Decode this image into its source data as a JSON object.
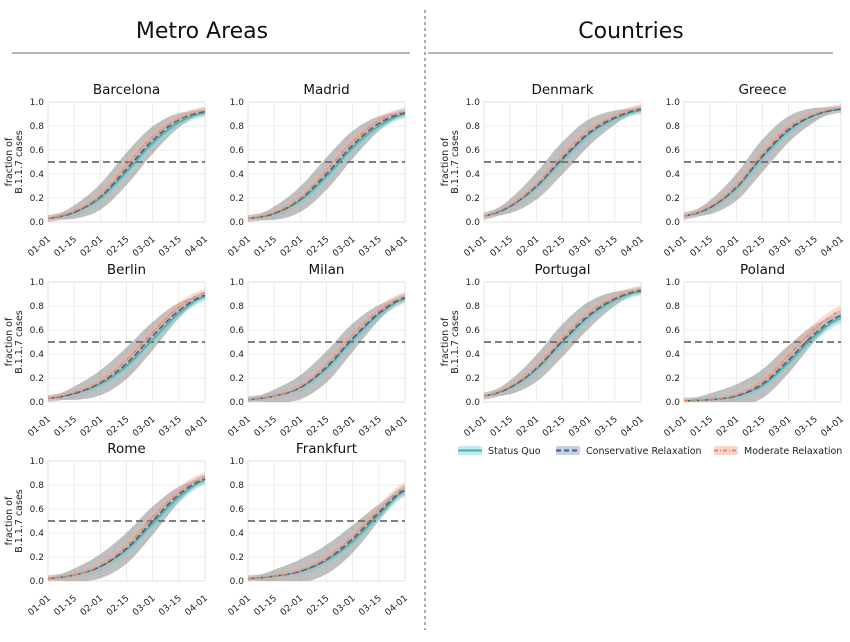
{
  "sections": {
    "left_title": "Metro Areas",
    "right_title": "Countries"
  },
  "y_axis": {
    "label_line1": "fraction of",
    "label_line2": "B.1.1.7 cases",
    "ticks": [
      "0.0",
      "0.2",
      "0.4",
      "0.6",
      "0.8",
      "1.0"
    ]
  },
  "x_axis": {
    "ticks": [
      "01-01",
      "01-15",
      "02-01",
      "02-15",
      "03-01",
      "03-15",
      "04-01"
    ]
  },
  "legend": {
    "status_quo": "Status Quo",
    "conservative": "Conservative Relaxation",
    "moderate": "Moderate Relaxation"
  },
  "colors": {
    "status_quo": "#3cb89a",
    "conservative": "#3d5d8f",
    "moderate": "#ec8a5e",
    "band_status_quo": "#8fd6e6",
    "band_conservative": "#9aaac4",
    "band_moderate": "#f2b4a0",
    "uncertainty": "#8a8a8a",
    "threshold": "#6f6f6f"
  },
  "chart_data": [
    {
      "type": "line",
      "title": "Barcelona",
      "ylim": [
        0,
        1
      ],
      "threshold": 0.5,
      "x": [
        "01-01",
        "01-15",
        "02-01",
        "02-15",
        "03-01",
        "03-15",
        "04-01"
      ],
      "series": [
        {
          "name": "Status Quo",
          "values": [
            0.03,
            0.08,
            0.2,
            0.42,
            0.66,
            0.83,
            0.91
          ]
        },
        {
          "name": "Conservative Relaxation",
          "values": [
            0.03,
            0.08,
            0.21,
            0.44,
            0.68,
            0.85,
            0.92
          ]
        },
        {
          "name": "Moderate Relaxation",
          "values": [
            0.03,
            0.09,
            0.22,
            0.47,
            0.71,
            0.86,
            0.93
          ]
        }
      ]
    },
    {
      "type": "line",
      "title": "Madrid",
      "ylim": [
        0,
        1
      ],
      "threshold": 0.5,
      "x": [
        "01-01",
        "01-15",
        "02-01",
        "02-15",
        "03-01",
        "03-15",
        "04-01"
      ],
      "series": [
        {
          "name": "Status Quo",
          "values": [
            0.03,
            0.07,
            0.18,
            0.38,
            0.62,
            0.8,
            0.9
          ]
        },
        {
          "name": "Conservative Relaxation",
          "values": [
            0.03,
            0.07,
            0.19,
            0.4,
            0.64,
            0.82,
            0.91
          ]
        },
        {
          "name": "Moderate Relaxation",
          "values": [
            0.03,
            0.08,
            0.2,
            0.43,
            0.67,
            0.84,
            0.92
          ]
        }
      ]
    },
    {
      "type": "line",
      "title": "Berlin",
      "ylim": [
        0,
        1
      ],
      "threshold": 0.5,
      "x": [
        "01-01",
        "01-15",
        "02-01",
        "02-15",
        "03-01",
        "03-15",
        "04-01"
      ],
      "series": [
        {
          "name": "Status Quo",
          "values": [
            0.03,
            0.07,
            0.15,
            0.3,
            0.52,
            0.74,
            0.88
          ]
        },
        {
          "name": "Conservative Relaxation",
          "values": [
            0.03,
            0.07,
            0.16,
            0.32,
            0.55,
            0.76,
            0.89
          ]
        },
        {
          "name": "Moderate Relaxation",
          "values": [
            0.03,
            0.08,
            0.17,
            0.35,
            0.58,
            0.79,
            0.91
          ]
        }
      ]
    },
    {
      "type": "line",
      "title": "Milan",
      "ylim": [
        0,
        1
      ],
      "threshold": 0.5,
      "x": [
        "01-01",
        "01-15",
        "02-01",
        "02-15",
        "03-01",
        "03-15",
        "04-01"
      ],
      "series": [
        {
          "name": "Status Quo",
          "values": [
            0.02,
            0.05,
            0.12,
            0.28,
            0.52,
            0.73,
            0.86
          ]
        },
        {
          "name": "Conservative Relaxation",
          "values": [
            0.02,
            0.05,
            0.12,
            0.29,
            0.53,
            0.74,
            0.87
          ]
        },
        {
          "name": "Moderate Relaxation",
          "values": [
            0.02,
            0.05,
            0.13,
            0.31,
            0.56,
            0.76,
            0.88
          ]
        }
      ]
    },
    {
      "type": "line",
      "title": "Rome",
      "ylim": [
        0,
        1
      ],
      "threshold": 0.5,
      "x": [
        "01-01",
        "01-15",
        "02-01",
        "02-15",
        "03-01",
        "03-15",
        "04-01"
      ],
      "series": [
        {
          "name": "Status Quo",
          "values": [
            0.02,
            0.05,
            0.12,
            0.26,
            0.48,
            0.7,
            0.84
          ]
        },
        {
          "name": "Conservative Relaxation",
          "values": [
            0.02,
            0.05,
            0.12,
            0.27,
            0.5,
            0.72,
            0.85
          ]
        },
        {
          "name": "Moderate Relaxation",
          "values": [
            0.02,
            0.05,
            0.13,
            0.29,
            0.53,
            0.74,
            0.87
          ]
        }
      ]
    },
    {
      "type": "line",
      "title": "Frankfurt",
      "ylim": [
        0,
        1
      ],
      "threshold": 0.5,
      "x": [
        "01-01",
        "01-15",
        "02-01",
        "02-15",
        "03-01",
        "03-15",
        "04-01"
      ],
      "series": [
        {
          "name": "Status Quo",
          "values": [
            0.02,
            0.04,
            0.08,
            0.17,
            0.33,
            0.55,
            0.75
          ]
        },
        {
          "name": "Conservative Relaxation",
          "values": [
            0.02,
            0.04,
            0.08,
            0.18,
            0.35,
            0.57,
            0.76
          ]
        },
        {
          "name": "Moderate Relaxation",
          "values": [
            0.02,
            0.04,
            0.09,
            0.19,
            0.37,
            0.59,
            0.78
          ]
        }
      ]
    },
    {
      "type": "line",
      "title": "Denmark",
      "ylim": [
        0,
        1
      ],
      "threshold": 0.5,
      "x": [
        "01-01",
        "01-15",
        "02-01",
        "02-15",
        "03-01",
        "03-15",
        "04-01"
      ],
      "series": [
        {
          "name": "Status Quo",
          "values": [
            0.05,
            0.13,
            0.29,
            0.52,
            0.73,
            0.86,
            0.93
          ]
        },
        {
          "name": "Conservative Relaxation",
          "values": [
            0.05,
            0.13,
            0.3,
            0.53,
            0.74,
            0.87,
            0.94
          ]
        },
        {
          "name": "Moderate Relaxation",
          "values": [
            0.05,
            0.14,
            0.31,
            0.55,
            0.76,
            0.88,
            0.95
          ]
        }
      ]
    },
    {
      "type": "line",
      "title": "Greece",
      "ylim": [
        0,
        1
      ],
      "threshold": 0.5,
      "x": [
        "01-01",
        "01-15",
        "02-01",
        "02-15",
        "03-01",
        "03-15",
        "04-01"
      ],
      "series": [
        {
          "name": "Status Quo",
          "values": [
            0.05,
            0.12,
            0.28,
            0.54,
            0.76,
            0.89,
            0.94
          ]
        },
        {
          "name": "Conservative Relaxation",
          "values": [
            0.05,
            0.12,
            0.29,
            0.55,
            0.77,
            0.89,
            0.94
          ]
        },
        {
          "name": "Moderate Relaxation",
          "values": [
            0.05,
            0.13,
            0.3,
            0.57,
            0.79,
            0.9,
            0.95
          ]
        }
      ]
    },
    {
      "type": "line",
      "title": "Portugal",
      "ylim": [
        0,
        1
      ],
      "threshold": 0.5,
      "x": [
        "01-01",
        "01-15",
        "02-01",
        "02-15",
        "03-01",
        "03-15",
        "04-01"
      ],
      "series": [
        {
          "name": "Status Quo",
          "values": [
            0.05,
            0.12,
            0.27,
            0.5,
            0.71,
            0.85,
            0.92
          ]
        },
        {
          "name": "Conservative Relaxation",
          "values": [
            0.05,
            0.12,
            0.28,
            0.51,
            0.72,
            0.86,
            0.93
          ]
        },
        {
          "name": "Moderate Relaxation",
          "values": [
            0.05,
            0.13,
            0.29,
            0.53,
            0.74,
            0.87,
            0.94
          ]
        }
      ]
    },
    {
      "type": "line",
      "title": "Poland",
      "ylim": [
        0,
        1
      ],
      "threshold": 0.5,
      "x": [
        "01-01",
        "01-15",
        "02-01",
        "02-15",
        "03-01",
        "03-15",
        "04-01"
      ],
      "series": [
        {
          "name": "Status Quo",
          "values": [
            0.01,
            0.02,
            0.05,
            0.14,
            0.33,
            0.55,
            0.7
          ]
        },
        {
          "name": "Conservative Relaxation",
          "values": [
            0.01,
            0.02,
            0.05,
            0.15,
            0.35,
            0.57,
            0.72
          ]
        },
        {
          "name": "Moderate Relaxation",
          "values": [
            0.01,
            0.02,
            0.06,
            0.17,
            0.39,
            0.61,
            0.76
          ]
        }
      ]
    }
  ]
}
